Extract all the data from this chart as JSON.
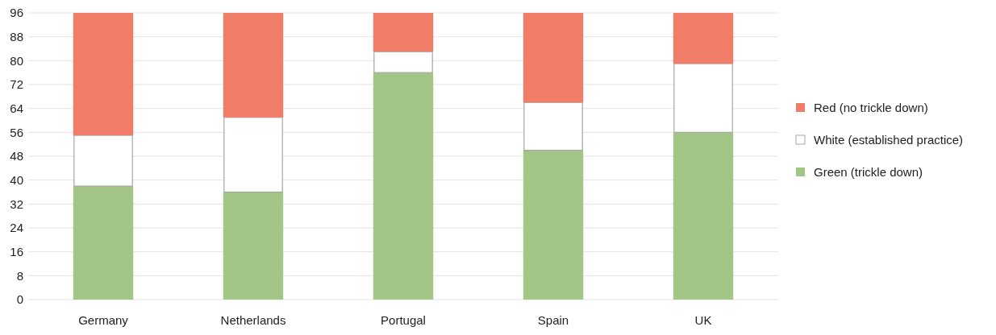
{
  "chart_data": {
    "type": "bar",
    "stacked": true,
    "categories": [
      "Germany",
      "Netherlands",
      "Portugal",
      "Spain",
      "UK"
    ],
    "series": [
      {
        "name": "Green (trickle down)",
        "color": "#a3c585",
        "values": [
          38,
          36,
          76,
          50,
          56
        ]
      },
      {
        "name": "White (established practice)",
        "color": "#ffffff",
        "values": [
          17,
          25,
          7,
          16,
          23
        ]
      },
      {
        "name": "Red (no trickle down)",
        "color": "#ef7d67",
        "values": [
          41,
          35,
          13,
          30,
          17
        ]
      }
    ],
    "ylim": [
      0,
      96
    ],
    "yticks": [
      0,
      8,
      16,
      24,
      32,
      40,
      48,
      56,
      64,
      72,
      80,
      88,
      96
    ],
    "grid": "y",
    "legend": "right"
  }
}
